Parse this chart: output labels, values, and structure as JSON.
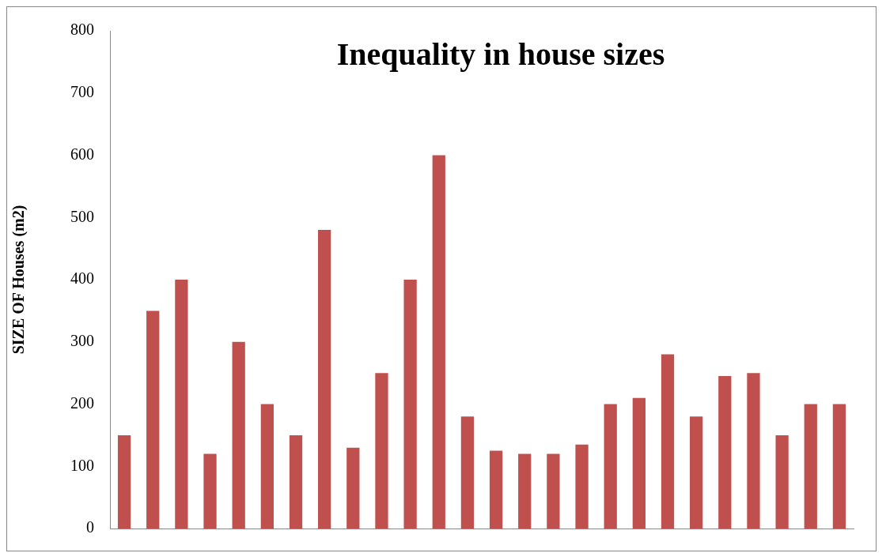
{
  "chart_data": {
    "type": "bar",
    "title": "Inequality in house sizes",
    "ylabel": "SIZE OF Houses (m2)",
    "categories": [
      null,
      null,
      null,
      null,
      null,
      null,
      null,
      null,
      null,
      null,
      null,
      null,
      null,
      null,
      null,
      null,
      null,
      null,
      null,
      null,
      null,
      null,
      null,
      null,
      null,
      null
    ],
    "values": [
      150,
      350,
      400,
      120,
      300,
      200,
      150,
      480,
      130,
      250,
      400,
      600,
      180,
      125,
      120,
      120,
      135,
      200,
      210,
      280,
      180,
      245,
      250,
      150,
      200,
      200
    ],
    "color": "#c0504d",
    "ylim": [
      0,
      800
    ],
    "yticks": [
      0,
      100,
      200,
      300,
      400,
      500,
      600,
      700,
      800
    ],
    "grid": false,
    "legend": false,
    "tick_labels": "y"
  }
}
